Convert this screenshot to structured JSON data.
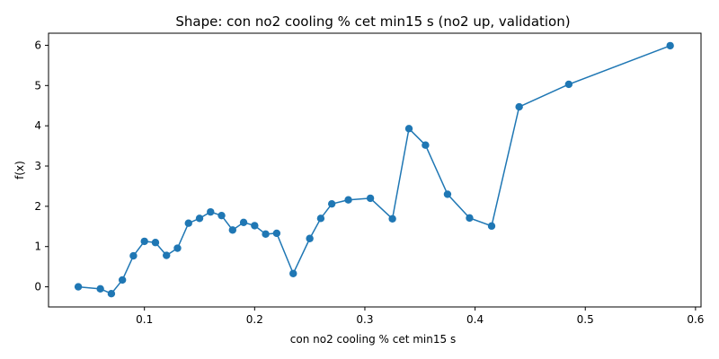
{
  "chart_data": {
    "type": "line",
    "title": "Shape: con no2 cooling % cet min15 s (no2 up, validation)",
    "xlabel": "con no2 cooling % cet min15 s",
    "ylabel": "f(x)",
    "xlim": [
      0.013,
      0.605
    ],
    "ylim": [
      -0.5,
      6.3
    ],
    "xticks": [
      0.1,
      0.2,
      0.3,
      0.4,
      0.5,
      0.6
    ],
    "xtick_labels": [
      "0.1",
      "0.2",
      "0.3",
      "0.4",
      "0.5",
      "0.6"
    ],
    "yticks": [
      0,
      1,
      2,
      3,
      4,
      5,
      6
    ],
    "ytick_labels": [
      "0",
      "1",
      "2",
      "3",
      "4",
      "5",
      "6"
    ],
    "grid": false,
    "color": "#1f77b4",
    "series": [
      {
        "x": [
          0.04,
          0.06,
          0.07,
          0.08,
          0.09,
          0.1,
          0.11,
          0.12,
          0.13,
          0.14,
          0.15,
          0.16,
          0.17,
          0.18,
          0.19,
          0.2,
          0.21,
          0.22,
          0.235,
          0.25,
          0.26,
          0.27,
          0.285,
          0.305,
          0.325,
          0.34,
          0.355,
          0.375,
          0.395,
          0.415,
          0.44,
          0.485,
          0.577
        ],
        "y": [
          0.0,
          -0.05,
          -0.17,
          0.17,
          0.77,
          1.13,
          1.1,
          0.78,
          0.96,
          1.58,
          1.7,
          1.86,
          1.77,
          1.41,
          1.6,
          1.52,
          1.31,
          1.33,
          0.33,
          1.2,
          1.7,
          2.06,
          2.16,
          2.2,
          1.69,
          3.93,
          3.52,
          2.3,
          1.71,
          1.51,
          4.47,
          5.03,
          5.99
        ]
      }
    ]
  }
}
